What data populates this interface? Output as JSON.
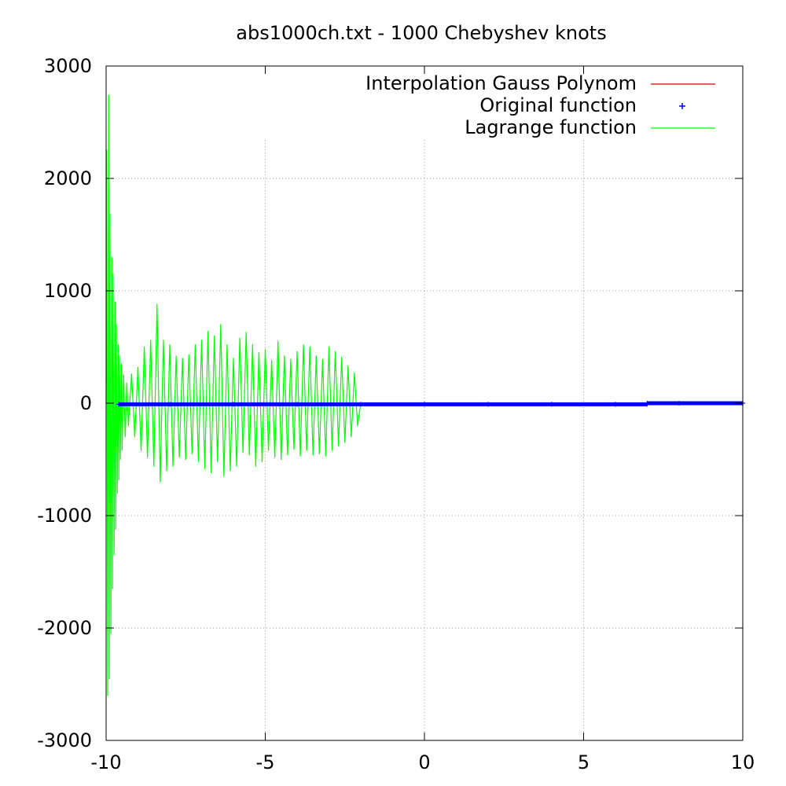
{
  "chart_data": {
    "type": "line",
    "title": "abs1000ch.txt - 1000 Chebyshev knots",
    "xlabel": "",
    "ylabel": "",
    "xlim": [
      -10,
      10
    ],
    "ylim": [
      -3000,
      3000
    ],
    "x_ticks": [
      -10,
      -5,
      0,
      5,
      10
    ],
    "y_ticks": [
      -3000,
      -2000,
      -1000,
      0,
      1000,
      2000,
      3000
    ],
    "x_tick_labels": [
      "-10",
      "-5",
      "0",
      "5",
      "10"
    ],
    "y_tick_labels": [
      "-3000",
      "-2000",
      "-1000",
      "0",
      "1000",
      "2000",
      "3000"
    ],
    "grid": true,
    "legend_position": "top-right",
    "series": [
      {
        "name": "Interpolation Gauss Polynom",
        "type": "line",
        "color": "#d00000",
        "x": [],
        "y": []
      },
      {
        "name": "Original function",
        "type": "points",
        "color": "#0000ff",
        "marker": "plus",
        "x": [
          -9.6,
          -8.0,
          -6.0,
          -4.0,
          -2.0,
          0,
          2.0,
          4.0,
          6.0,
          6.99,
          7.0,
          8.0,
          10.0
        ],
        "y": [
          -10,
          -10,
          -10,
          -10,
          -10,
          -10,
          -10,
          -10,
          -10,
          -10,
          0,
          0,
          0
        ]
      },
      {
        "name": "Lagrange function",
        "type": "line",
        "color": "#00ff00",
        "x": [
          -10.0,
          -9.98,
          -9.95,
          -9.92,
          -9.9,
          -9.88,
          -9.85,
          -9.82,
          -9.8,
          -9.78,
          -9.75,
          -9.72,
          -9.7,
          -9.68,
          -9.65,
          -9.62,
          -9.6,
          -9.58,
          -9.55,
          -9.52,
          -9.5,
          -9.45,
          -9.4,
          -9.35,
          -9.3,
          -9.2,
          -9.1,
          -9.0,
          -8.9,
          -8.8,
          -8.7,
          -8.6,
          -8.5,
          -8.4,
          -8.3,
          -8.2,
          -8.1,
          -8.0,
          -7.9,
          -7.8,
          -7.7,
          -7.6,
          -7.5,
          -7.4,
          -7.3,
          -7.2,
          -7.1,
          -7.0,
          -6.9,
          -6.8,
          -6.7,
          -6.6,
          -6.5,
          -6.4,
          -6.3,
          -6.2,
          -6.1,
          -6.0,
          -5.9,
          -5.8,
          -5.7,
          -5.6,
          -5.5,
          -5.4,
          -5.3,
          -5.2,
          -5.1,
          -5.0,
          -4.9,
          -4.8,
          -4.7,
          -4.6,
          -4.5,
          -4.4,
          -4.3,
          -4.2,
          -4.1,
          -4.0,
          -3.9,
          -3.8,
          -3.7,
          -3.6,
          -3.5,
          -3.4,
          -3.3,
          -3.2,
          -3.1,
          -3.0,
          -2.9,
          -2.8,
          -2.7,
          -2.6,
          -2.5,
          -2.4,
          -2.3,
          -2.2,
          -2.1,
          -2.0
        ],
        "y": [
          0,
          2250,
          -2600,
          2740,
          -2450,
          1680,
          -2050,
          1300,
          -1650,
          1150,
          -1350,
          900,
          -1120,
          700,
          -800,
          520,
          -680,
          420,
          -500,
          350,
          -420,
          250,
          -300,
          180,
          -200,
          260,
          -300,
          320,
          -420,
          500,
          -480,
          560,
          -560,
          880,
          -700,
          560,
          -600,
          520,
          -560,
          420,
          -480,
          400,
          -500,
          430,
          -450,
          520,
          -520,
          560,
          -580,
          640,
          -620,
          600,
          -520,
          700,
          -650,
          520,
          -600,
          400,
          -560,
          580,
          -440,
          630,
          -460,
          520,
          -560,
          450,
          -520,
          480,
          -420,
          380,
          -480,
          550,
          -500,
          420,
          -460,
          390,
          -410,
          460,
          -470,
          520,
          -420,
          500,
          -460,
          420,
          -450,
          390,
          -470,
          500,
          -420,
          460,
          -380,
          410,
          -350,
          330,
          -300,
          270,
          -200,
          0
        ]
      }
    ]
  },
  "legend": {
    "gauss_label": "Interpolation Gauss Polynom",
    "original_label": "Original function",
    "lagrange_label": "Lagrange function"
  },
  "colors": {
    "axis": "#000000",
    "grid": "#a0a0a0",
    "gauss": "#d00000",
    "original": "#0000ff",
    "lagrange": "#00ff00",
    "background": "#ffffff"
  }
}
